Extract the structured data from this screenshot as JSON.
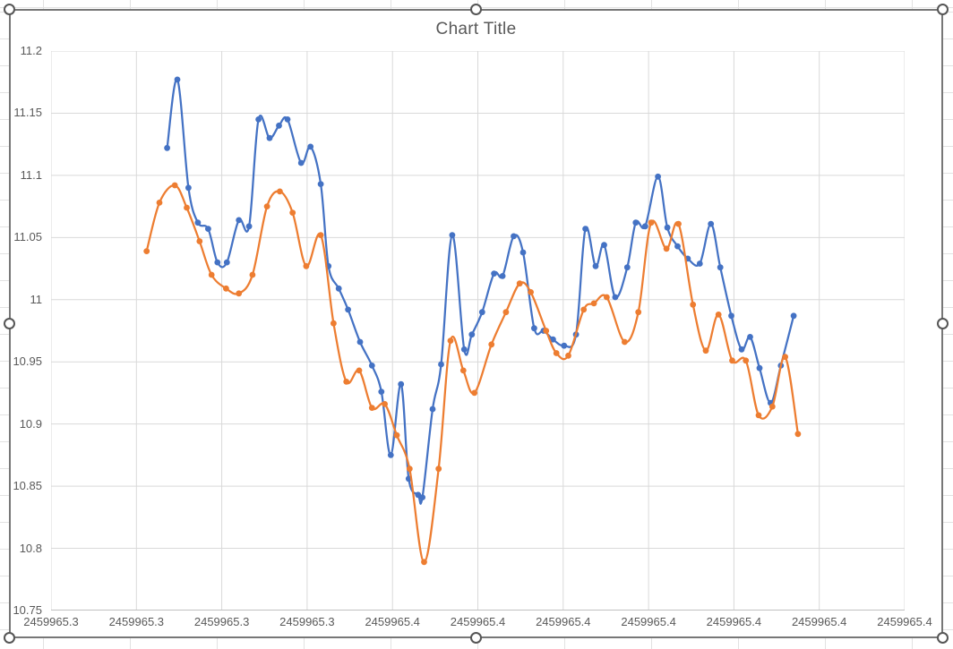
{
  "chart_data": {
    "type": "line",
    "title": "Chart Title",
    "legend": "none",
    "grid": true,
    "colors": {
      "series_1": "#4472C4",
      "series_2": "#ED7D31",
      "gridline": "#D9D9D9",
      "axis_line": "#BFBFBF",
      "text": "#595959",
      "chart_border": "#777777",
      "sheet_gridline": "#E2E2E2",
      "handle_ring": "#555555"
    },
    "x_axis": {
      "min": 2459965.31,
      "max": 2459965.41,
      "tick_step": 0.01,
      "ticks": [
        {
          "value": 2459965.31,
          "label": "2459965.3"
        },
        {
          "value": 2459965.32,
          "label": "2459965.3"
        },
        {
          "value": 2459965.33,
          "label": "2459965.3"
        },
        {
          "value": 2459965.34,
          "label": "2459965.3"
        },
        {
          "value": 2459965.35,
          "label": "2459965.4"
        },
        {
          "value": 2459965.36,
          "label": "2459965.4"
        },
        {
          "value": 2459965.37,
          "label": "2459965.4"
        },
        {
          "value": 2459965.38,
          "label": "2459965.4"
        },
        {
          "value": 2459965.39,
          "label": "2459965.4"
        },
        {
          "value": 2459965.4,
          "label": "2459965.4"
        },
        {
          "value": 2459965.41,
          "label": "2459965.4"
        }
      ]
    },
    "y_axis": {
      "min": 10.75,
      "max": 11.2,
      "tick_step": 0.05,
      "ticks": [
        {
          "value": 11.2,
          "label": "11.2"
        },
        {
          "value": 11.15,
          "label": "11.15"
        },
        {
          "value": 11.1,
          "label": "11.1"
        },
        {
          "value": 11.05,
          "label": "11.05"
        },
        {
          "value": 11.0,
          "label": "11"
        },
        {
          "value": 10.95,
          "label": "10.95"
        },
        {
          "value": 10.9,
          "label": "10.9"
        },
        {
          "value": 10.85,
          "label": "10.85"
        },
        {
          "value": 10.8,
          "label": "10.8"
        },
        {
          "value": 10.75,
          "label": "10.75"
        }
      ]
    },
    "series": [
      {
        "id": "series-1",
        "color": "#4472C4",
        "marker": "circle",
        "smooth": true,
        "points": [
          [
            2459965.3236,
            11.122
          ],
          [
            2459965.3248,
            11.177
          ],
          [
            2459965.3261,
            11.09
          ],
          [
            2459965.3272,
            11.062
          ],
          [
            2459965.3284,
            11.057
          ],
          [
            2459965.3295,
            11.03
          ],
          [
            2459965.3306,
            11.03
          ],
          [
            2459965.332,
            11.064
          ],
          [
            2459965.3332,
            11.059
          ],
          [
            2459965.3343,
            11.145
          ],
          [
            2459965.3356,
            11.13
          ],
          [
            2459965.3367,
            11.14
          ],
          [
            2459965.3377,
            11.145
          ],
          [
            2459965.3393,
            11.11
          ],
          [
            2459965.3404,
            11.123
          ],
          [
            2459965.3416,
            11.093
          ],
          [
            2459965.3425,
            11.027
          ],
          [
            2459965.3437,
            11.009
          ],
          [
            2459965.3448,
            10.992
          ],
          [
            2459965.3462,
            10.966
          ],
          [
            2459965.3476,
            10.947
          ],
          [
            2459965.3487,
            10.926
          ],
          [
            2459965.3498,
            10.875
          ],
          [
            2459965.351,
            10.932
          ],
          [
            2459965.3519,
            10.856
          ],
          [
            2459965.353,
            10.843
          ],
          [
            2459965.3535,
            10.841
          ],
          [
            2459965.3547,
            10.912
          ],
          [
            2459965.3557,
            10.948
          ],
          [
            2459965.357,
            11.052
          ],
          [
            2459965.3584,
            10.96
          ],
          [
            2459965.3593,
            10.972
          ],
          [
            2459965.3605,
            10.99
          ],
          [
            2459965.3619,
            11.021
          ],
          [
            2459965.3629,
            11.019
          ],
          [
            2459965.3642,
            11.051
          ],
          [
            2459965.3653,
            11.038
          ],
          [
            2459965.3666,
            10.977
          ],
          [
            2459965.3677,
            10.975
          ],
          [
            2459965.3688,
            10.968
          ],
          [
            2459965.3701,
            10.963
          ],
          [
            2459965.3715,
            10.972
          ],
          [
            2459965.3726,
            11.057
          ],
          [
            2459965.3738,
            11.027
          ],
          [
            2459965.3748,
            11.044
          ],
          [
            2459965.3761,
            11.002
          ],
          [
            2459965.3775,
            11.026
          ],
          [
            2459965.3785,
            11.062
          ],
          [
            2459965.3796,
            11.059
          ],
          [
            2459965.3811,
            11.099
          ],
          [
            2459965.3822,
            11.058
          ],
          [
            2459965.3834,
            11.043
          ],
          [
            2459965.3846,
            11.033
          ],
          [
            2459965.386,
            11.029
          ],
          [
            2459965.3873,
            11.061
          ],
          [
            2459965.3884,
            11.026
          ],
          [
            2459965.3897,
            10.987
          ],
          [
            2459965.3909,
            10.96
          ],
          [
            2459965.3919,
            10.97
          ],
          [
            2459965.393,
            10.945
          ],
          [
            2459965.3943,
            10.917
          ],
          [
            2459965.3955,
            10.947
          ],
          [
            2459965.397,
            10.987
          ]
        ]
      },
      {
        "id": "series-2",
        "color": "#ED7D31",
        "marker": "circle",
        "smooth": true,
        "points": [
          [
            2459965.3212,
            11.039
          ],
          [
            2459965.3227,
            11.078
          ],
          [
            2459965.3245,
            11.092
          ],
          [
            2459965.3259,
            11.074
          ],
          [
            2459965.3274,
            11.047
          ],
          [
            2459965.3288,
            11.02
          ],
          [
            2459965.3305,
            11.009
          ],
          [
            2459965.332,
            11.005
          ],
          [
            2459965.3336,
            11.02
          ],
          [
            2459965.3353,
            11.075
          ],
          [
            2459965.3368,
            11.087
          ],
          [
            2459965.3383,
            11.07
          ],
          [
            2459965.3399,
            11.027
          ],
          [
            2459965.3416,
            11.052
          ],
          [
            2459965.3431,
            10.981
          ],
          [
            2459965.3446,
            10.934
          ],
          [
            2459965.3461,
            10.943
          ],
          [
            2459965.3476,
            10.913
          ],
          [
            2459965.3491,
            10.916
          ],
          [
            2459965.3505,
            10.891
          ],
          [
            2459965.352,
            10.864
          ],
          [
            2459965.3537,
            10.789
          ],
          [
            2459965.3554,
            10.864
          ],
          [
            2459965.3568,
            10.967
          ],
          [
            2459965.3583,
            10.943
          ],
          [
            2459965.3596,
            10.925
          ],
          [
            2459965.3616,
            10.964
          ],
          [
            2459965.3633,
            10.99
          ],
          [
            2459965.3649,
            11.013
          ],
          [
            2459965.3662,
            11.006
          ],
          [
            2459965.368,
            10.975
          ],
          [
            2459965.3692,
            10.957
          ],
          [
            2459965.3706,
            10.955
          ],
          [
            2459965.3724,
            10.992
          ],
          [
            2459965.3736,
            10.997
          ],
          [
            2459965.3751,
            11.002
          ],
          [
            2459965.3772,
            10.966
          ],
          [
            2459965.3788,
            10.99
          ],
          [
            2459965.3803,
            11.062
          ],
          [
            2459965.3821,
            11.041
          ],
          [
            2459965.3835,
            11.061
          ],
          [
            2459965.3852,
            10.996
          ],
          [
            2459965.3867,
            10.959
          ],
          [
            2459965.3882,
            10.988
          ],
          [
            2459965.3898,
            10.951
          ],
          [
            2459965.3914,
            10.951
          ],
          [
            2459965.3929,
            10.907
          ],
          [
            2459965.3945,
            10.914
          ],
          [
            2459965.396,
            10.954
          ],
          [
            2459965.3975,
            10.892
          ]
        ]
      }
    ]
  }
}
